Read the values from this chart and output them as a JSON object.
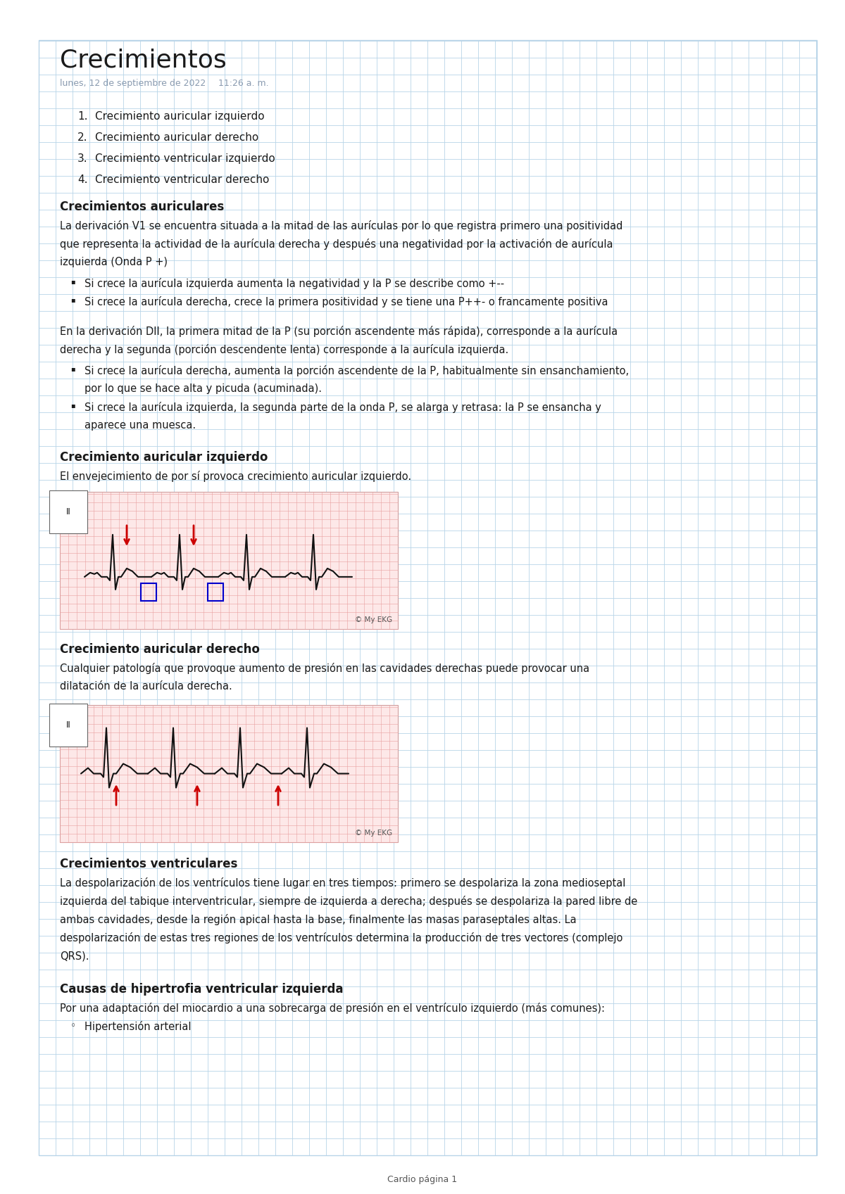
{
  "title": "Crecimientos",
  "date_line1": "lunes, 12 de septiembre de 2022",
  "date_line2": "11:26 a. m.",
  "numbered_list": [
    "Crecimiento auricular izquierdo",
    "Crecimiento auricular derecho",
    "Crecimiento ventricular izquierdo",
    "Crecimiento ventricular derecho"
  ],
  "section1_title": "Crecimientos auriculares",
  "section1_body_lines": [
    "La derivación V1 se encuentra situada a la mitad de las aurículas por lo que registra primero una positividad",
    "que representa la actividad de la aurícula derecha y después una negatividad por la activación de aurícula",
    "izquierda (Onda P +)"
  ],
  "section1_bullets": [
    "Si crece la aurícula izquierda aumenta la negatividad y la P se describe como +--",
    "Si crece la aurícula derecha, crece la primera positividad y se tiene una P++- o francamente positiva"
  ],
  "section1_para2_lines": [
    "En la derivación DII, la primera mitad de la P (su porción ascendente más rápida), corresponde a la aurícula",
    "derecha y la segunda (porción descendente lenta) corresponde a la aurícula izquierda."
  ],
  "section1_bullets2": [
    [
      "Si crece la aurícula derecha, aumenta la porción ascendente de la P, habitualmente sin ensanchamiento,",
      "por lo que se hace alta y picuda (acuminada)."
    ],
    [
      "Si crece la aurícula izquierda, la segunda parte de la onda P, se alarga y retrasa: la P se ensancha y",
      "aparece una muesca."
    ]
  ],
  "section2_title": "Crecimiento auricular izquierdo",
  "section2_body": "El envejecimiento de por sí provoca crecimiento auricular izquierdo.",
  "section3_title": "Crecimiento auricular derecho",
  "section3_body_lines": [
    "Cualquier patología que provoque aumento de presión en las cavidades derechas puede provocar una",
    "dilatación de la aurícula derecha."
  ],
  "section4_title": "Crecimientos ventriculares",
  "section4_body_lines": [
    "La despolarización de los ventrículos tiene lugar en tres tiempos: primero se despolariza la zona medioseptal",
    "izquierda del tabique interventricular, siempre de izquierda a derecha; después se despolariza la pared libre de",
    "ambas cavidades, desde la región apical hasta la base, finalmente las masas paraseptales altas. La",
    "despolarización de estas tres regiones de los ventrículos determina la producción de tres vectores (complejo",
    "QRS)."
  ],
  "section5_title": "Causas de hipertrofia ventricular izquierda",
  "section5_body": "Por una adaptación del miocardio a una sobrecarga de presión en el ventrículo izquierdo (más comunes):",
  "section5_bullets": [
    "Hipertensión arterial"
  ],
  "footer": "Cardio página 1",
  "bg_color": "#ffffff",
  "grid_color": "#b8d4e8",
  "text_color": "#1a1a1a",
  "title_color": "#1a1a1a",
  "section_title_color": "#1a1a1a",
  "date_color": "#8a9bb0",
  "ecg_bg": "#fde8e8",
  "ecg_grid_color": "#e8a0a0",
  "ecg_line_color": "#111111",
  "ecg_arrow_color": "#cc0000",
  "ecg_box_color": "#0000cc",
  "ecg_label_color": "#555555"
}
